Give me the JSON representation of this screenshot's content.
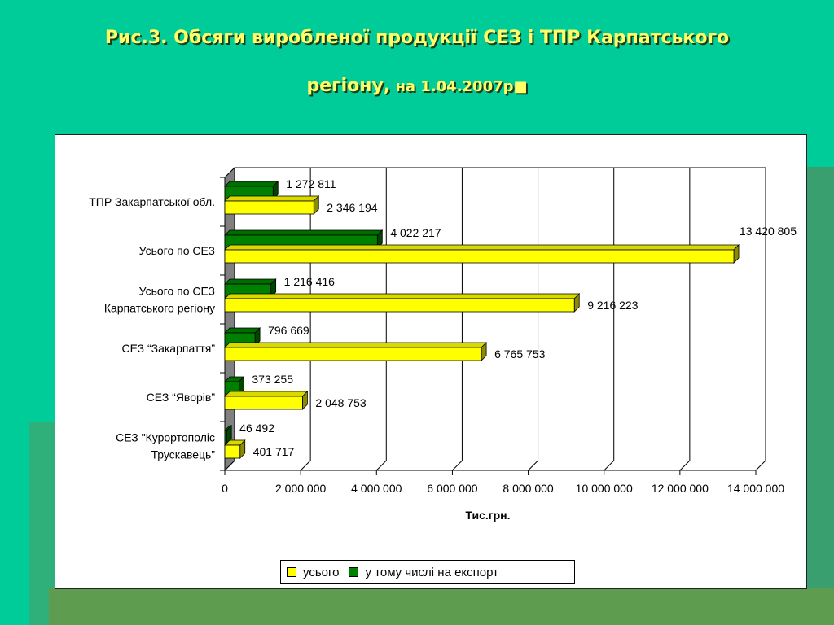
{
  "title": {
    "line1": "Рис.3. Обсяги виробленої продукції СЕЗ і ТПР Карпатського",
    "line2_main": "регіону,",
    "line2_small": " на 1.04.2007р■"
  },
  "colors": {
    "total": "#ffff00",
    "export": "#008000"
  },
  "chart_data": {
    "type": "bar",
    "orientation": "horizontal",
    "categories": [
      [
        "ТПР Закарпатської обл."
      ],
      [
        "Усього по СЕЗ"
      ],
      [
        "Усього по СЕЗ",
        "Карпатського регіону"
      ],
      [
        "СЕЗ “Закарпаття”"
      ],
      [
        "СЕЗ “Яворів”"
      ],
      [
        "СЕЗ \"Курортополіс",
        "Трускавець”"
      ]
    ],
    "series": [
      {
        "name": "у тому числі на експорт",
        "values": [
          1272811,
          4022217,
          1216416,
          796669,
          373255,
          46492
        ],
        "labels": [
          "1 272 811",
          "4 022 217",
          "1 216 416",
          "796 669",
          "373 255",
          "46 492"
        ]
      },
      {
        "name": "усього",
        "values": [
          2346194,
          13420805,
          9216223,
          6765753,
          2048753,
          401717
        ],
        "labels": [
          "2 346 194",
          "13 420 805",
          "9 216 223",
          "6 765 753",
          "2 048 753",
          "401 717"
        ]
      }
    ],
    "xlabel": "Тис.грн.",
    "xlim": [
      0,
      14000000
    ],
    "xticks": [
      0,
      2000000,
      4000000,
      6000000,
      8000000,
      10000000,
      12000000,
      14000000
    ],
    "xtick_labels": [
      "0",
      "2 000 000",
      "4 000 000",
      "6 000 000",
      "8 000 000",
      "10 000 000",
      "12 000 000",
      "14 000 000"
    ],
    "grid": true,
    "legend_position": "bottom"
  },
  "legend": {
    "total_label": "усього",
    "export_label": "у тому числі на експорт"
  }
}
